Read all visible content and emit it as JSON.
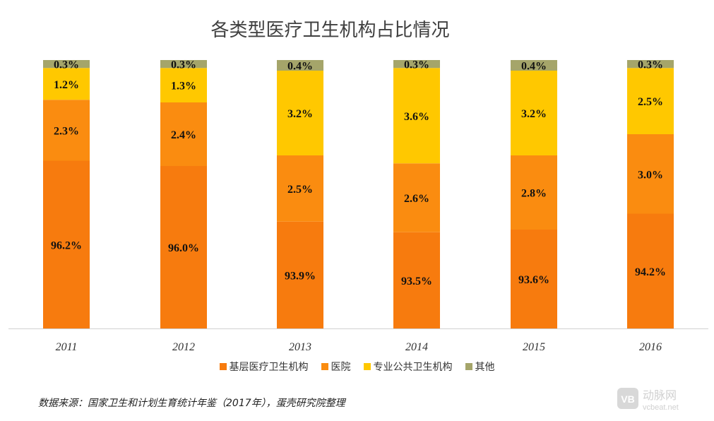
{
  "title": "各类型医疗卫生机构占比情况",
  "source": "数据来源：国家卫生和计划生育统计年鉴（2017年），蛋壳研究院整理",
  "logo": {
    "mark": "VB",
    "name": "动脉网",
    "site": "vcbeat.net"
  },
  "chart_data": {
    "type": "bar",
    "stacked": true,
    "title": "各类型医疗卫生机构占比情况",
    "categories": [
      "2011",
      "2012",
      "2013",
      "2014",
      "2015",
      "2016"
    ],
    "series": [
      {
        "name": "基层医疗卫生机构",
        "color": "#F77B0E",
        "values": [
          96.2,
          96.0,
          93.9,
          93.5,
          93.6,
          94.2
        ],
        "labels": [
          "96.2%",
          "96.0%",
          "93.9%",
          "93.5%",
          "93.6%",
          "94.2%"
        ]
      },
      {
        "name": "医院",
        "color": "#FA8C10",
        "values": [
          2.3,
          2.4,
          2.5,
          2.6,
          2.8,
          3.0
        ],
        "labels": [
          "2.3%",
          "2.4%",
          "2.5%",
          "2.6%",
          "2.8%",
          "3.0%"
        ]
      },
      {
        "name": "专业公共卫生机构",
        "color": "#FFC800",
        "values": [
          1.2,
          1.3,
          3.2,
          3.6,
          3.2,
          2.5
        ],
        "labels": [
          "1.2%",
          "1.3%",
          "3.2%",
          "3.6%",
          "3.2%",
          "2.5%"
        ]
      },
      {
        "name": "其他",
        "color": "#A5A56A",
        "values": [
          0.3,
          0.3,
          0.4,
          0.3,
          0.4,
          0.3
        ],
        "labels": [
          "0.3%",
          "0.3%",
          "0.4%",
          "0.3%",
          "0.4%",
          "0.3%"
        ]
      }
    ],
    "ylim": [
      0,
      100
    ],
    "axis_break": true,
    "grid": false,
    "legend": "bottom"
  }
}
